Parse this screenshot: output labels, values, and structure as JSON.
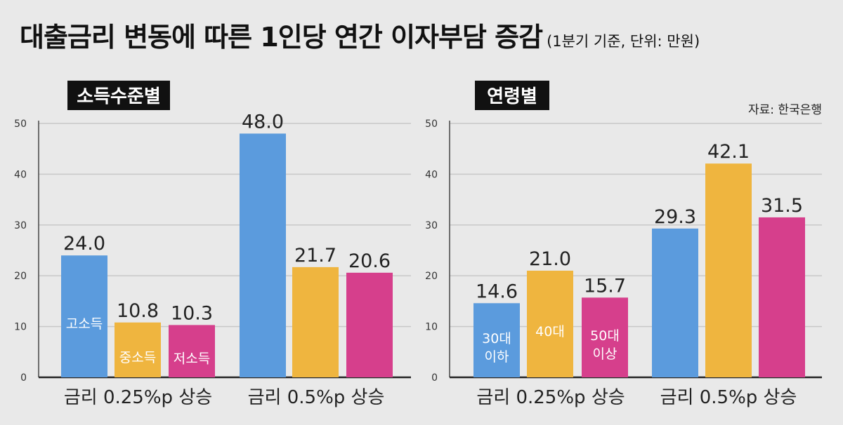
{
  "header": {
    "title": "대출금리 변동에 따른 1인당 연간 이자부담 증감",
    "subtitle": "(1분기 기준, 단위: 만원)"
  },
  "source": "자료: 한국은행",
  "colors": {
    "blue": "#5b9bdd",
    "yellow": "#efb53f",
    "magenta": "#d63f8c",
    "background": "#e9e9e9",
    "grid": "#c8c8c8"
  },
  "chart_data": [
    {
      "type": "bar",
      "title": "소득수준별",
      "categories": [
        "금리 0.25%p 상승",
        "금리 0.5%p 상승"
      ],
      "series": [
        {
          "name": "고소득",
          "values": [
            24.0,
            48.0
          ]
        },
        {
          "name": "중소득",
          "values": [
            10.8,
            21.7
          ]
        },
        {
          "name": "저소득",
          "values": [
            10.3,
            20.6
          ]
        }
      ],
      "yticks": [
        0,
        10,
        20,
        30,
        40,
        50
      ],
      "ylim": [
        0,
        50
      ],
      "grid": true
    },
    {
      "type": "bar",
      "title": "연령별",
      "categories": [
        "금리 0.25%p 상승",
        "금리 0.5%p 상승"
      ],
      "series": [
        {
          "name": "30대 이하",
          "values": [
            14.6,
            29.3
          ]
        },
        {
          "name": "40대",
          "values": [
            21.0,
            42.1
          ]
        },
        {
          "name": "50대 이상",
          "values": [
            15.7,
            31.5
          ]
        }
      ],
      "yticks": [
        0,
        10,
        20,
        30,
        40,
        50
      ],
      "ylim": [
        0,
        50
      ],
      "grid": true
    }
  ]
}
